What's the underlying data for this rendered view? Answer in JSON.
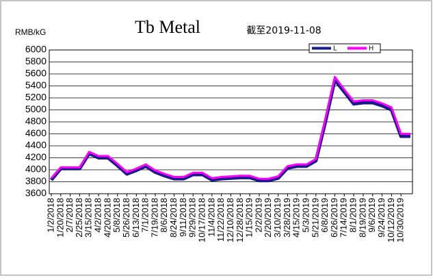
{
  "chart_data": {
    "type": "line",
    "title": "Tb Metal",
    "subtitle": "截至2019-11-08",
    "y_label": "RMB/kG",
    "categories": [
      "1/2/2018",
      "1/20/2018",
      "2/7/2018",
      "2/25/2018",
      "3/15/2018",
      "4/2/2018",
      "4/20/2018",
      "5/8/2018",
      "5/26/2018",
      "6/13/2018",
      "7/1/2018",
      "7/19/2018",
      "8/6/2018",
      "8/24/2018",
      "9/11/2018",
      "9/29/2018",
      "10/17/2018",
      "11/4/2018",
      "11/22/2018",
      "12/10/2018",
      "12/28/2018",
      "1/15/2019",
      "2/2/2019",
      "2/20/2019",
      "3/10/2019",
      "3/28/2019",
      "4/15/2019",
      "5/3/2019",
      "5/21/2019",
      "6/8/2019",
      "6/26/2019",
      "7/14/2019",
      "8/1/2019",
      "8/19/2019",
      "9/6/2019",
      "9/24/2019",
      "10/12/2019",
      "10/30/2019",
      null
    ],
    "series": [
      {
        "name": "L",
        "color": "#1a1a8c",
        "values": [
          3830,
          4020,
          4020,
          4020,
          4270,
          4200,
          4200,
          4070,
          3930,
          3990,
          4060,
          3960,
          3900,
          3850,
          3850,
          3920,
          3920,
          3830,
          3850,
          3860,
          3870,
          3870,
          3820,
          3820,
          3860,
          4030,
          4060,
          4060,
          4150,
          4800,
          5500,
          5300,
          5100,
          5120,
          5120,
          5070,
          5000,
          4560,
          4560
        ]
      },
      {
        "name": "H",
        "color": "#ff00ff",
        "values": [
          3860,
          4040,
          4040,
          4040,
          4300,
          4230,
          4230,
          4100,
          3960,
          4020,
          4090,
          3990,
          3930,
          3880,
          3880,
          3950,
          3950,
          3860,
          3880,
          3890,
          3900,
          3900,
          3850,
          3850,
          3890,
          4060,
          4090,
          4090,
          4180,
          4850,
          5550,
          5340,
          5140,
          5160,
          5160,
          5110,
          5040,
          4600,
          4600
        ]
      }
    ],
    "ylim": [
      3600,
      6000
    ],
    "yticks": [
      3600,
      3800,
      4000,
      4200,
      4400,
      4600,
      4800,
      5000,
      5200,
      5400,
      5600,
      5800,
      6000
    ],
    "grid": true
  }
}
